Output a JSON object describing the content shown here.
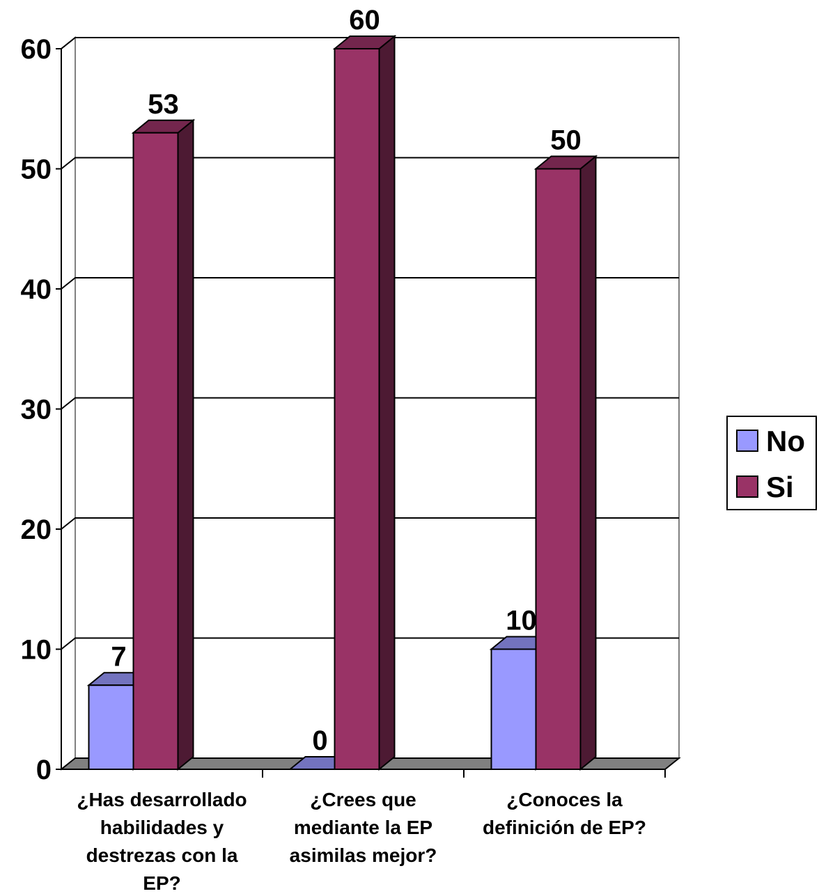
{
  "chart_data": {
    "type": "bar",
    "title": "",
    "xlabel": "",
    "ylabel": "",
    "ylim": [
      0,
      60
    ],
    "yticks": [
      0,
      10,
      20,
      30,
      40,
      50,
      60
    ],
    "grid": true,
    "legend_position": "right",
    "categories": [
      [
        "¿Has desarrollado",
        "habilidades y",
        "destrezas con la",
        "EP?"
      ],
      [
        "¿Crees que",
        "mediante la EP",
        "asimilas mejor?"
      ],
      [
        "¿Conoces la",
        "definición de EP?"
      ]
    ],
    "series": [
      {
        "name": "No",
        "values": [
          7,
          0,
          10
        ],
        "color": "#9999ff"
      },
      {
        "name": "Si",
        "values": [
          53,
          60,
          50
        ],
        "color": "#993366"
      }
    ]
  }
}
